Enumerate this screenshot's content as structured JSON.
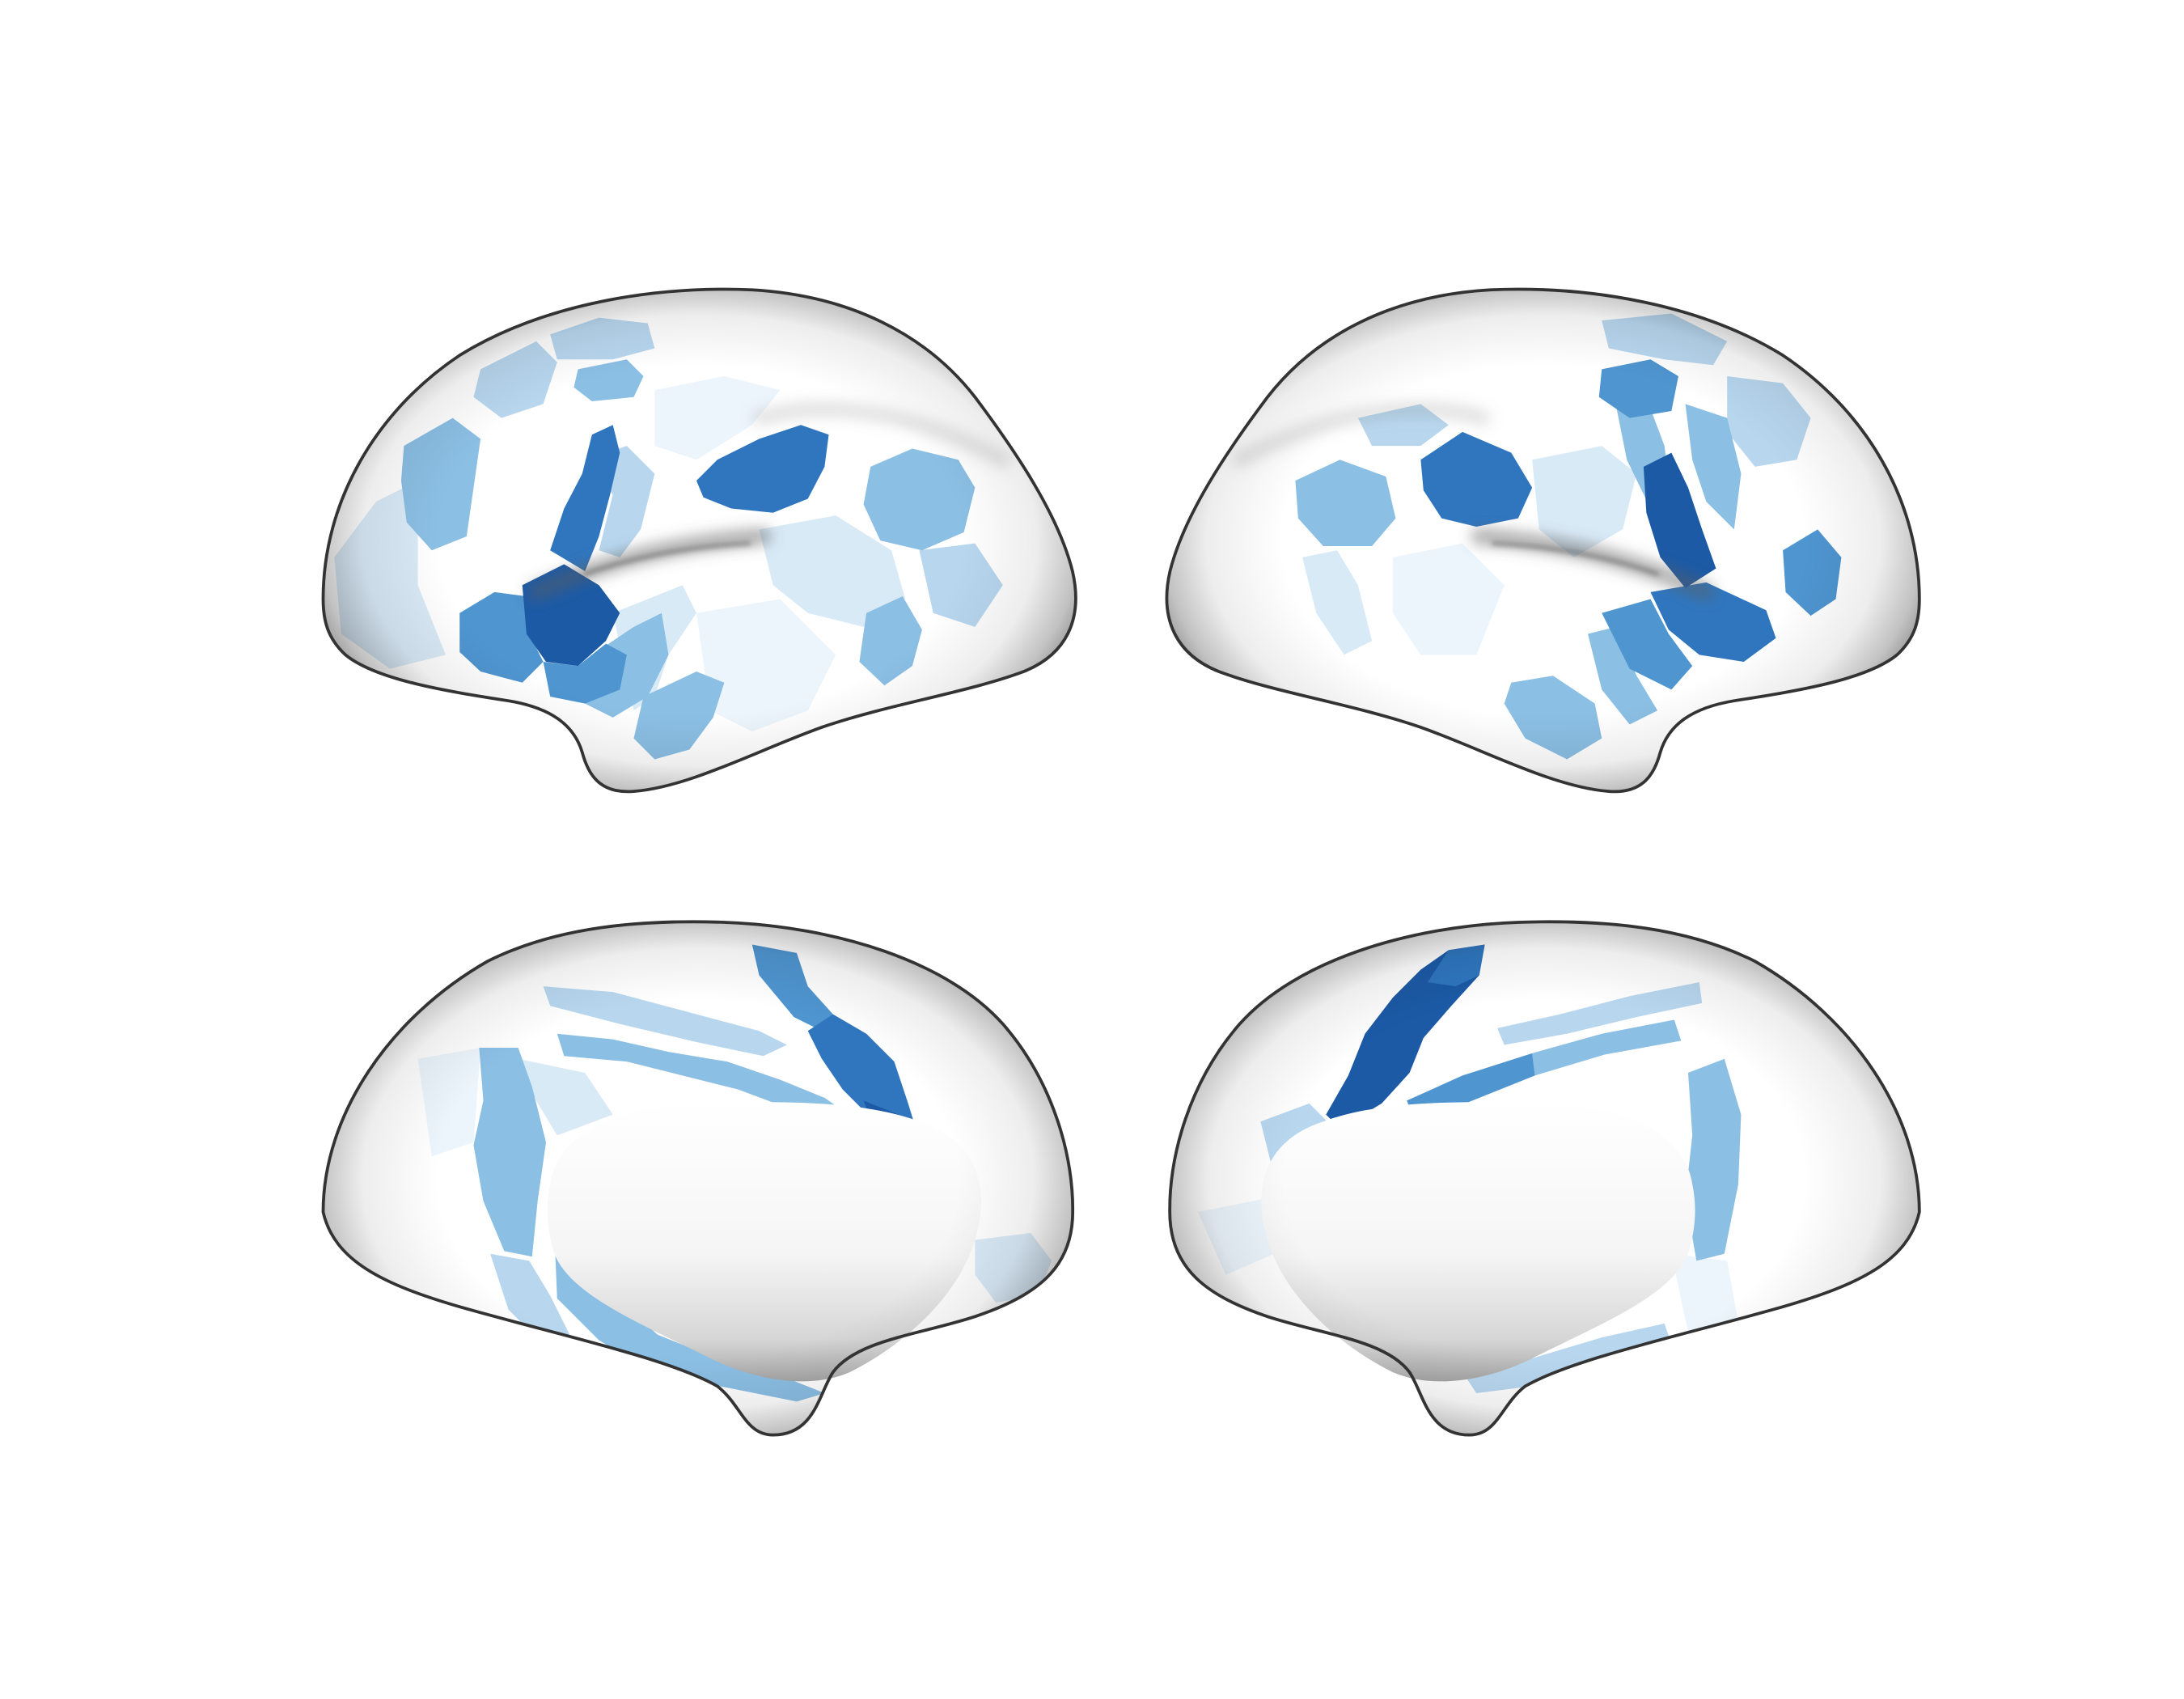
{
  "figure": {
    "background": "#ffffff",
    "surface": "#ffffff",
    "outline": "#333333",
    "medial_wall": "#f7f7f7"
  },
  "palette": {
    "dark": "#1c5aa6",
    "darkmid": "#2f76bf",
    "mid": "#4f95d0",
    "light": "#8bbfe4",
    "pale": "#b8d7ef",
    "verypale": "#d9eaf7",
    "faint": "#ecf5fc"
  }
}
